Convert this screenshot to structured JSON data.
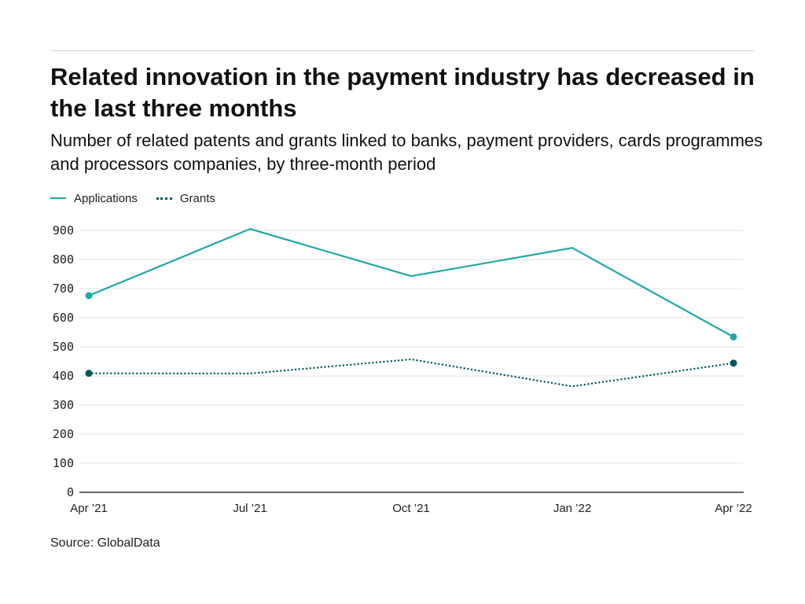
{
  "title": "Related innovation in the payment industry has decreased in the last three months",
  "subtitle": "Number of related patents and grants linked to banks, payment providers, cards programmes and processors companies, by three-month period",
  "source": "Source: GlobalData",
  "colors": {
    "applications": "#1fa8a8",
    "grants": "#005a5a",
    "grid": "#e3e3e3",
    "axis": "#333333"
  },
  "legend": [
    {
      "label": "Applications",
      "style": "solid"
    },
    {
      "label": "Grants",
      "style": "dotted"
    }
  ],
  "chart_data": {
    "type": "line",
    "x": [
      "Apr '21",
      "Jul '21",
      "Oct '21",
      "Jan '22",
      "Apr '22"
    ],
    "x_tick_labels": [
      "Apr ’21",
      "Jul ’21",
      "Oct ’21",
      "Jan ’22",
      "Apr ’22"
    ],
    "series": [
      {
        "name": "Applications",
        "values": [
          676,
          905,
          743,
          840,
          534
        ],
        "line_style": "solid",
        "end_markers": true
      },
      {
        "name": "Grants",
        "values": [
          409,
          408,
          457,
          364,
          444
        ],
        "line_style": "dotted",
        "end_markers": true
      }
    ],
    "ylim": [
      0,
      900
    ],
    "yticks": [
      0,
      100,
      200,
      300,
      400,
      500,
      600,
      700,
      800,
      900
    ],
    "grid": "horizontal",
    "legend_position": "top-left",
    "xlabel": "",
    "ylabel": ""
  }
}
